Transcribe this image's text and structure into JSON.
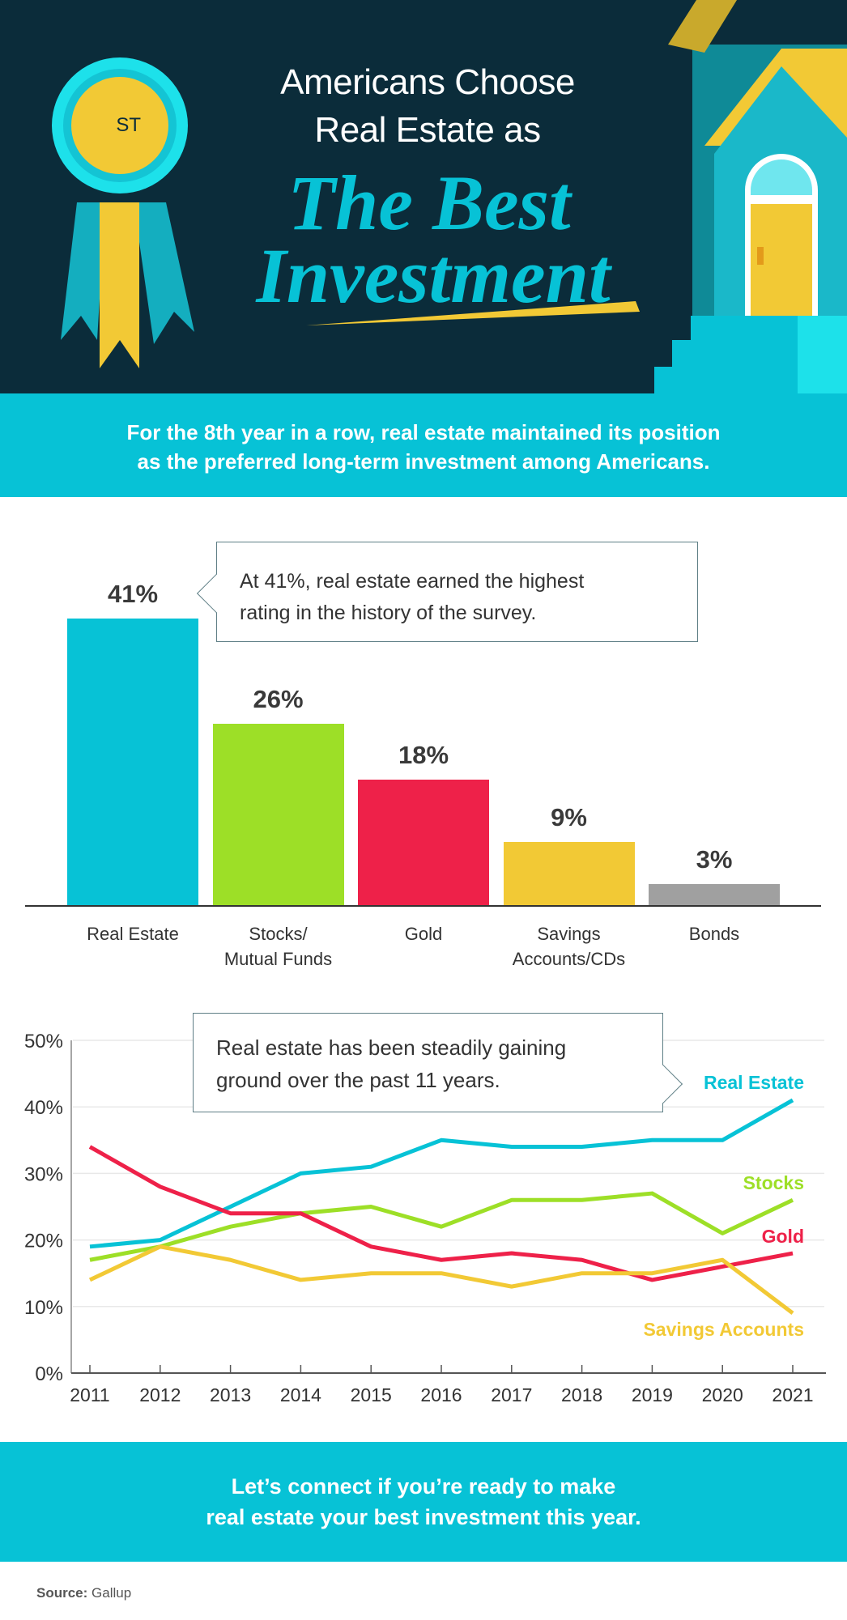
{
  "header": {
    "badge_text": "1ST",
    "title_line1": "Americans Choose",
    "title_line2": "Real Estate as",
    "title_script_line1": "The Best",
    "title_script_line2": "Investment",
    "subtitle_line1": "For the 8th year in a row, real estate maintained its position",
    "subtitle_line2": "as the preferred long-term investment among Americans."
  },
  "colors": {
    "header_bg": "#0b2c3a",
    "accent_cyan": "#07c2d6",
    "real_estate": "#07c2d6",
    "stocks": "#9ddf27",
    "gold": "#ee2149",
    "savings": "#f2c935",
    "bonds": "#a0a0a0"
  },
  "bar_callout": {
    "line1": "At 41%, real estate earned the highest",
    "line2": "rating in the history of the survey."
  },
  "line_callout": {
    "line1": "Real estate has been steadily gaining",
    "line2": "ground over the past 11 years."
  },
  "chart_data": [
    {
      "type": "bar",
      "categories": [
        "Real Estate",
        "Stocks/ Mutual Funds",
        "Gold",
        "Savings Accounts/CDs",
        "Bonds"
      ],
      "category_lines": [
        [
          "Real Estate"
        ],
        [
          "Stocks/",
          "Mutual Funds"
        ],
        [
          "Gold"
        ],
        [
          "Savings",
          "Accounts/CDs"
        ],
        [
          "Bonds"
        ]
      ],
      "values": [
        41,
        26,
        18,
        9,
        3
      ],
      "data_labels": [
        "41%",
        "26%",
        "18%",
        "9%",
        "3%"
      ],
      "colors": [
        "#07c2d6",
        "#9ddf27",
        "#ee2149",
        "#f2c935",
        "#a0a0a0"
      ],
      "ylim": [
        0,
        41
      ],
      "grid": false
    },
    {
      "type": "line",
      "x": [
        2011,
        2012,
        2013,
        2014,
        2015,
        2016,
        2017,
        2018,
        2019,
        2020,
        2021
      ],
      "x_tick_labels": [
        "2011",
        "2012",
        "2013",
        "2014",
        "2015",
        "2016",
        "2017",
        "2018",
        "2019",
        "2020",
        "2021"
      ],
      "y_ticks": [
        0,
        10,
        20,
        30,
        40,
        50
      ],
      "y_tick_labels": [
        "0%",
        "10%",
        "20%",
        "30%",
        "40%",
        "50%"
      ],
      "ylim": [
        0,
        50
      ],
      "grid": true,
      "series": [
        {
          "name": "Real Estate",
          "color": "#07c2d6",
          "values": [
            19,
            20,
            25,
            30,
            31,
            35,
            34,
            34,
            35,
            35,
            41
          ]
        },
        {
          "name": "Stocks",
          "color": "#9ddf27",
          "values": [
            17,
            19,
            22,
            24,
            25,
            22,
            26,
            26,
            27,
            21,
            26
          ]
        },
        {
          "name": "Gold",
          "color": "#ee2149",
          "values": [
            34,
            28,
            24,
            24,
            19,
            17,
            18,
            17,
            14,
            16,
            18
          ]
        },
        {
          "name": "Savings Accounts",
          "color": "#f2c935",
          "values": [
            14,
            19,
            17,
            14,
            15,
            15,
            13,
            15,
            15,
            17,
            9
          ]
        }
      ]
    }
  ],
  "cta": {
    "line1": "Let’s connect if you’re ready to make",
    "line2": "real estate your best investment this year."
  },
  "source": {
    "label": "Source:",
    "value": "Gallup"
  }
}
